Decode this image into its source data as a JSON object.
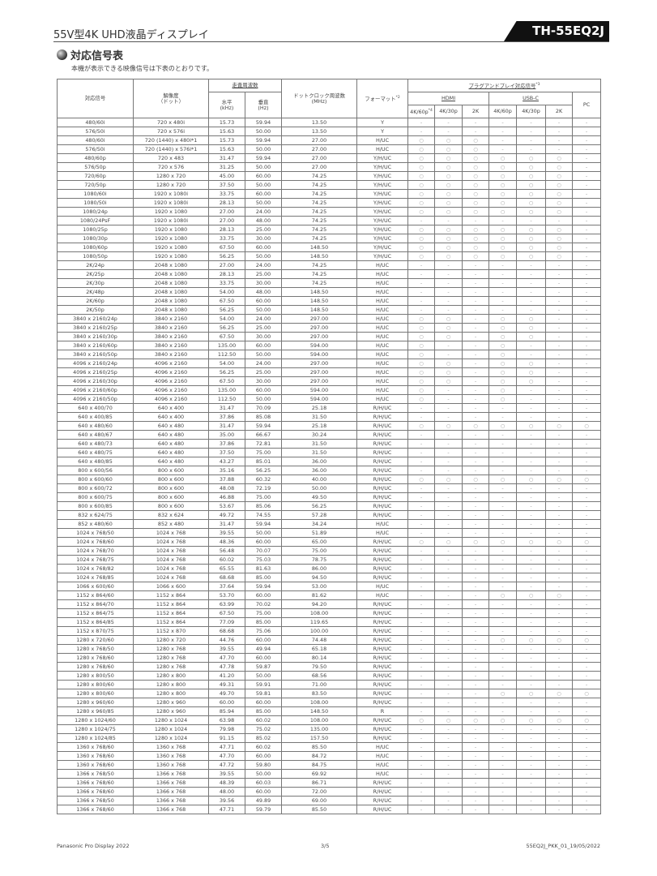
{
  "header": {
    "title": "55V型4K UHD液晶ディスプレイ",
    "model": "TH-55EQ2J"
  },
  "section": {
    "title": "対応信号表",
    "intro": "本機が表示できる映像信号は下表のとおりです。"
  },
  "table": {
    "headers": {
      "signal": "対応信号",
      "resolution": "解像度",
      "resolution_unit": "（ドット）",
      "scan": "走査周波数",
      "horizontal": "水平",
      "horizontal_unit": "(kHz)",
      "vertical": "垂直",
      "vertical_unit": "(Hz)",
      "clock": "ドットクロック周波数",
      "clock_unit": "(MHz)",
      "format": "フォーマット",
      "format_note": "*2",
      "pnp": "プラグアンドプレイ対応信号",
      "pnp_note": "*3",
      "hdmi": "HDMI",
      "usbc": "USB-C",
      "pc": "PC",
      "hdmi_cols": [
        "4K/60p",
        "4K/30p",
        "2K"
      ],
      "hdmi_first_note": "*4",
      "usbc_cols": [
        "4K/60p",
        "4K/30p",
        "2K"
      ]
    },
    "legend": {
      "supported": "○",
      "unsupported": "-"
    },
    "rows": [
      [
        "480/60i",
        "720 x 480i",
        "15.73",
        "59.94",
        "13.50",
        "Y",
        "-------"
      ],
      [
        "576/50i",
        "720 x 576i",
        "15.63",
        "50.00",
        "13.50",
        "Y",
        "-------"
      ],
      [
        "480/60i",
        "720 (1440) x 480i*1",
        "15.73",
        "59.94",
        "27.00",
        "H/UC",
        "○○○----"
      ],
      [
        "576/50i",
        "720 (1440) x 576i*1",
        "15.63",
        "50.00",
        "27.00",
        "H/UC",
        "○○○----"
      ],
      [
        "480/60p",
        "720 x 483",
        "31.47",
        "59.94",
        "27.00",
        "Y/H/UC",
        "○○○○○○-"
      ],
      [
        "576/50p",
        "720 x 576",
        "31.25",
        "50.00",
        "27.00",
        "Y/H/UC",
        "○○○○○○-"
      ],
      [
        "720/60p",
        "1280 x 720",
        "45.00",
        "60.00",
        "74.25",
        "Y/H/UC",
        "○○○○○○-"
      ],
      [
        "720/50p",
        "1280 x 720",
        "37.50",
        "50.00",
        "74.25",
        "Y/H/UC",
        "○○○○○○-"
      ],
      [
        "1080/60i",
        "1920 x 1080i",
        "33.75",
        "60.00",
        "74.25",
        "Y/H/UC",
        "○○○○○○-"
      ],
      [
        "1080/50i",
        "1920 x 1080i",
        "28.13",
        "50.00",
        "74.25",
        "Y/H/UC",
        "○○○○○○-"
      ],
      [
        "1080/24p",
        "1920 x 1080",
        "27.00",
        "24.00",
        "74.25",
        "Y/H/UC",
        "○○○○○○-"
      ],
      [
        "1080/24PsF",
        "1920 x 1080i",
        "27.00",
        "48.00",
        "74.25",
        "Y/H/UC",
        "-------"
      ],
      [
        "1080/25p",
        "1920 x 1080",
        "28.13",
        "25.00",
        "74.25",
        "Y/H/UC",
        "○○○○○○-"
      ],
      [
        "1080/30p",
        "1920 x 1080",
        "33.75",
        "30.00",
        "74.25",
        "Y/H/UC",
        "○○○○○○-"
      ],
      [
        "1080/60p",
        "1920 x 1080",
        "67.50",
        "60.00",
        "148.50",
        "Y/H/UC",
        "○○○○○○-"
      ],
      [
        "1080/50p",
        "1920 x 1080",
        "56.25",
        "50.00",
        "148.50",
        "Y/H/UC",
        "○○○○○○-"
      ],
      [
        "2K/24p",
        "2048 x 1080",
        "27.00",
        "24.00",
        "74.25",
        "H/UC",
        "-------"
      ],
      [
        "2K/25p",
        "2048 x 1080",
        "28.13",
        "25.00",
        "74.25",
        "H/UC",
        "-------"
      ],
      [
        "2K/30p",
        "2048 x 1080",
        "33.75",
        "30.00",
        "74.25",
        "H/UC",
        "-------"
      ],
      [
        "2K/48p",
        "2048 x 1080",
        "54.00",
        "48.00",
        "148.50",
        "H/UC",
        "-------"
      ],
      [
        "2K/60p",
        "2048 x 1080",
        "67.50",
        "60.00",
        "148.50",
        "H/UC",
        "-------"
      ],
      [
        "2K/50p",
        "2048 x 1080",
        "56.25",
        "50.00",
        "148.50",
        "H/UC",
        "-------"
      ],
      [
        "3840 x 2160/24p",
        "3840 x 2160",
        "54.00",
        "24.00",
        "297.00",
        "H/UC",
        "○○-○○--"
      ],
      [
        "3840 x 2160/25p",
        "3840 x 2160",
        "56.25",
        "25.00",
        "297.00",
        "H/UC",
        "○○-○○--"
      ],
      [
        "3840 x 2160/30p",
        "3840 x 2160",
        "67.50",
        "30.00",
        "297.00",
        "H/UC",
        "○○-○○--"
      ],
      [
        "3840 x 2160/60p",
        "3840 x 2160",
        "135.00",
        "60.00",
        "594.00",
        "H/UC",
        "○--○---"
      ],
      [
        "3840 x 2160/50p",
        "3840 x 2160",
        "112.50",
        "50.00",
        "594.00",
        "H/UC",
        "○--○---"
      ],
      [
        "4096 x 2160/24p",
        "4096 x 2160",
        "54.00",
        "24.00",
        "297.00",
        "H/UC",
        "○○-○○--"
      ],
      [
        "4096 x 2160/25p",
        "4096 x 2160",
        "56.25",
        "25.00",
        "297.00",
        "H/UC",
        "○○-○○--"
      ],
      [
        "4096 x 2160/30p",
        "4096 x 2160",
        "67.50",
        "30.00",
        "297.00",
        "H/UC",
        "○○-○○--"
      ],
      [
        "4096 x 2160/60p",
        "4096 x 2160",
        "135.00",
        "60.00",
        "594.00",
        "H/UC",
        "○--○---"
      ],
      [
        "4096 x 2160/50p",
        "4096 x 2160",
        "112.50",
        "50.00",
        "594.00",
        "H/UC",
        "○--○---"
      ],
      [
        "640 x 400/70",
        "640 x 400",
        "31.47",
        "70.09",
        "25.18",
        "R/H/UC",
        "-------"
      ],
      [
        "640 x 400/85",
        "640 x 400",
        "37.86",
        "85.08",
        "31.50",
        "R/H/UC",
        "-------"
      ],
      [
        "640 x 480/60",
        "640 x 480",
        "31.47",
        "59.94",
        "25.18",
        "R/H/UC",
        "○○○○○○○"
      ],
      [
        "640 x 480/67",
        "640 x 480",
        "35.00",
        "66.67",
        "30.24",
        "R/H/UC",
        "-------"
      ],
      [
        "640 x 480/73",
        "640 x 480",
        "37.86",
        "72.81",
        "31.50",
        "R/H/UC",
        "-------"
      ],
      [
        "640 x 480/75",
        "640 x 480",
        "37.50",
        "75.00",
        "31.50",
        "R/H/UC",
        "-------"
      ],
      [
        "640 x 480/85",
        "640 x 480",
        "43.27",
        "85.01",
        "36.00",
        "R/H/UC",
        "-------"
      ],
      [
        "800 x 600/56",
        "800 x 600",
        "35.16",
        "56.25",
        "36.00",
        "R/H/UC",
        "-------"
      ],
      [
        "800 x 600/60",
        "800 x 600",
        "37.88",
        "60.32",
        "40.00",
        "R/H/UC",
        "○○○○○○○"
      ],
      [
        "800 x 600/72",
        "800 x 600",
        "48.08",
        "72.19",
        "50.00",
        "R/H/UC",
        "-------"
      ],
      [
        "800 x 600/75",
        "800 x 600",
        "46.88",
        "75.00",
        "49.50",
        "R/H/UC",
        "-------"
      ],
      [
        "800 x 600/85",
        "800 x 600",
        "53.67",
        "85.06",
        "56.25",
        "R/H/UC",
        "-------"
      ],
      [
        "832 x 624/75",
        "832 x 624",
        "49.72",
        "74.55",
        "57.28",
        "R/H/UC",
        "-------"
      ],
      [
        "852 x 480/60",
        "852 x 480",
        "31.47",
        "59.94",
        "34.24",
        "H/UC",
        "-------"
      ],
      [
        "1024 x 768/50",
        "1024 x 768",
        "39.55",
        "50.00",
        "51.89",
        "H/UC",
        "-------"
      ],
      [
        "1024 x 768/60",
        "1024 x 768",
        "48.36",
        "60.00",
        "65.00",
        "R/H/UC",
        "○○○○○○○"
      ],
      [
        "1024 x 768/70",
        "1024 x 768",
        "56.48",
        "70.07",
        "75.00",
        "R/H/UC",
        "-------"
      ],
      [
        "1024 x 768/75",
        "1024 x 768",
        "60.02",
        "75.03",
        "78.75",
        "R/H/UC",
        "-------"
      ],
      [
        "1024 x 768/82",
        "1024 x 768",
        "65.55",
        "81.63",
        "86.00",
        "R/H/UC",
        "-------"
      ],
      [
        "1024 x 768/85",
        "1024 x 768",
        "68.68",
        "85.00",
        "94.50",
        "R/H/UC",
        "-------"
      ],
      [
        "1066 x 600/60",
        "1066 x 600",
        "37.64",
        "59.94",
        "53.00",
        "H/UC",
        "-------"
      ],
      [
        "1152 x 864/60",
        "1152 x 864",
        "53.70",
        "60.00",
        "81.62",
        "H/UC",
        "---○○○-"
      ],
      [
        "1152 x 864/70",
        "1152 x 864",
        "63.99",
        "70.02",
        "94.20",
        "R/H/UC",
        "-------"
      ],
      [
        "1152 x 864/75",
        "1152 x 864",
        "67.50",
        "75.00",
        "108.00",
        "R/H/UC",
        "-------"
      ],
      [
        "1152 x 864/85",
        "1152 x 864",
        "77.09",
        "85.00",
        "119.65",
        "R/H/UC",
        "-------"
      ],
      [
        "1152 x 870/75",
        "1152 x 870",
        "68.68",
        "75.06",
        "100.00",
        "R/H/UC",
        "-------"
      ],
      [
        "1280 x 720/60",
        "1280 x 720",
        "44.76",
        "60.00",
        "74.48",
        "R/H/UC",
        "---○○○○"
      ],
      [
        "1280 x 768/50",
        "1280 x 768",
        "39.55",
        "49.94",
        "65.18",
        "R/H/UC",
        "-------"
      ],
      [
        "1280 x 768/60",
        "1280 x 768",
        "47.70",
        "60.00",
        "80.14",
        "R/H/UC",
        "-------"
      ],
      [
        "1280 x 768/60",
        "1280 x 768",
        "47.78",
        "59.87",
        "79.50",
        "R/H/UC",
        "-------"
      ],
      [
        "1280 x 800/50",
        "1280 x 800",
        "41.20",
        "50.00",
        "68.56",
        "R/H/UC",
        "-------"
      ],
      [
        "1280 x 800/60",
        "1280 x 800",
        "49.31",
        "59.91",
        "71.00",
        "R/H/UC",
        "-------"
      ],
      [
        "1280 x 800/60",
        "1280 x 800",
        "49.70",
        "59.81",
        "83.50",
        "R/H/UC",
        "---○○○○"
      ],
      [
        "1280 x 960/60",
        "1280 x 960",
        "60.00",
        "60.00",
        "108.00",
        "R/H/UC",
        "-------"
      ],
      [
        "1280 x 960/85",
        "1280 x 960",
        "85.94",
        "85.00",
        "148.50",
        "R",
        "-------"
      ],
      [
        "1280 x 1024/60",
        "1280 x 1024",
        "63.98",
        "60.02",
        "108.00",
        "R/H/UC",
        "○○○○○○○"
      ],
      [
        "1280 x 1024/75",
        "1280 x 1024",
        "79.98",
        "75.02",
        "135.00",
        "R/H/UC",
        "-------"
      ],
      [
        "1280 x 1024/85",
        "1280 x 1024",
        "91.15",
        "85.02",
        "157.50",
        "R/H/UC",
        "-------"
      ],
      [
        "1360 x 768/60",
        "1360 x 768",
        "47.71",
        "60.02",
        "85.50",
        "H/UC",
        "-------"
      ],
      [
        "1360 x 768/60",
        "1360 x 768",
        "47.70",
        "60.00",
        "84.72",
        "H/UC",
        "-------"
      ],
      [
        "1360 x 768/60",
        "1360 x 768",
        "47.72",
        "59.80",
        "84.75",
        "H/UC",
        "-------"
      ],
      [
        "1366 x 768/50",
        "1366 x 768",
        "39.55",
        "50.00",
        "69.92",
        "H/UC",
        "-------"
      ],
      [
        "1366 x 768/60",
        "1366 x 768",
        "48.39",
        "60.03",
        "86.71",
        "R/H/UC",
        "-------"
      ],
      [
        "1366 x 768/60",
        "1366 x 768",
        "48.00",
        "60.00",
        "72.00",
        "R/H/UC",
        "-------"
      ],
      [
        "1366 x 768/50",
        "1366 x 768",
        "39.56",
        "49.89",
        "69.00",
        "R/H/UC",
        "-------"
      ],
      [
        "1366 x 768/60",
        "1366 x 768",
        "47.71",
        "59.79",
        "85.50",
        "R/H/UC",
        "-------"
      ]
    ]
  },
  "footer": {
    "left": "Panasonic Pro Display 2022",
    "center": "3/5",
    "right": "55EQ2J_PKK_01_19/05/2022"
  }
}
